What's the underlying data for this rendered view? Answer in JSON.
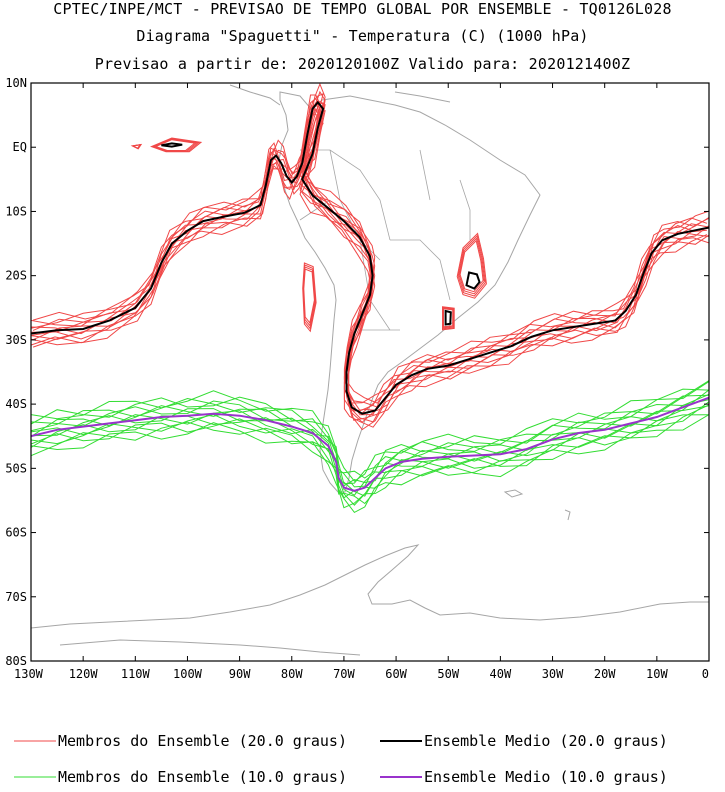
{
  "header": {
    "line1": "CPTEC/INPE/MCT - PREVISAO DE TEMPO GLOBAL POR ENSEMBLE - TQ0126L028",
    "line2": "Diagrama \"Spaguetti\" - Temperatura (C) (1000 hPa)",
    "line3": "Previsao a partir de: 2020120100Z  Valido para: 2020121400Z"
  },
  "axes": {
    "lat_labels": [
      "10N",
      "EQ",
      "10S",
      "20S",
      "30S",
      "40S",
      "50S",
      "60S",
      "70S",
      "80S"
    ],
    "lon_labels": [
      "130W",
      "120W",
      "110W",
      "100W",
      "90W",
      "80W",
      "70W",
      "60W",
      "50W",
      "40W",
      "30W",
      "20W",
      "10W",
      "0"
    ]
  },
  "map": {
    "lon_range": [
      -130,
      0
    ],
    "lat_range": [
      -80,
      10
    ],
    "land_color": "#a6a6a6",
    "member_20_color": "#f04848",
    "mean_20_color": "#000000",
    "member_10_color": "#33dd33",
    "mean_10_color": "#9933cc",
    "contour_20_mean": [
      [
        -130,
        -29
      ],
      [
        -125,
        -28.5
      ],
      [
        -120,
        -28.3
      ],
      [
        -115,
        -27
      ],
      [
        -110,
        -25
      ],
      [
        -107,
        -22
      ],
      [
        -105,
        -18
      ],
      [
        -103,
        -15
      ],
      [
        -100,
        -13
      ],
      [
        -97,
        -11.5
      ],
      [
        -93,
        -10.8
      ],
      [
        -89,
        -10.2
      ],
      [
        -86,
        -9
      ],
      [
        -85,
        -6
      ],
      [
        -84,
        -2
      ],
      [
        -83,
        -1.3
      ],
      [
        -82,
        -2.5
      ],
      [
        -81,
        -4.5
      ],
      [
        -80,
        -5.5
      ],
      [
        -79,
        -4.5
      ],
      [
        -78,
        -2.5
      ],
      [
        -77,
        2
      ],
      [
        -76,
        6
      ],
      [
        -75,
        7
      ],
      [
        -74,
        6
      ],
      [
        -75,
        3
      ],
      [
        -76,
        -1
      ],
      [
        -77,
        -3
      ],
      [
        -78,
        -5
      ],
      [
        -76,
        -7.5
      ],
      [
        -73,
        -9.5
      ],
      [
        -70,
        -11.5
      ],
      [
        -67,
        -14
      ],
      [
        -65,
        -17
      ],
      [
        -64.5,
        -20
      ],
      [
        -65,
        -23
      ],
      [
        -66.5,
        -26
      ],
      [
        -68,
        -29
      ],
      [
        -69,
        -32
      ],
      [
        -69.5,
        -35
      ],
      [
        -69.5,
        -38
      ],
      [
        -68.5,
        -40.5
      ],
      [
        -66.5,
        -41.5
      ],
      [
        -64,
        -41
      ],
      [
        -62,
        -39
      ],
      [
        -60,
        -37
      ],
      [
        -57,
        -35.5
      ],
      [
        -54,
        -34.5
      ],
      [
        -50,
        -34
      ],
      [
        -46,
        -33
      ],
      [
        -42,
        -32
      ],
      [
        -38,
        -31
      ],
      [
        -34,
        -29.5
      ],
      [
        -30,
        -28.5
      ],
      [
        -26,
        -28
      ],
      [
        -22,
        -27.5
      ],
      [
        -18,
        -27
      ],
      [
        -16,
        -25.5
      ],
      [
        -14,
        -23
      ],
      [
        -12.5,
        -19.5
      ],
      [
        -11,
        -16.5
      ],
      [
        -9,
        -14.5
      ],
      [
        -6,
        -13.5
      ],
      [
        -3,
        -13
      ],
      [
        0,
        -12.5
      ]
    ],
    "contour_10_mean": [
      [
        -130,
        -45
      ],
      [
        -125,
        -44
      ],
      [
        -120,
        -43.5
      ],
      [
        -115,
        -43
      ],
      [
        -110,
        -42.5
      ],
      [
        -105,
        -42
      ],
      [
        -100,
        -41.8
      ],
      [
        -95,
        -41.5
      ],
      [
        -90,
        -41.8
      ],
      [
        -85,
        -42.5
      ],
      [
        -80,
        -43.5
      ],
      [
        -76,
        -44.5
      ],
      [
        -73,
        -46.5
      ],
      [
        -71.5,
        -49
      ],
      [
        -71,
        -51.5
      ],
      [
        -70,
        -53
      ],
      [
        -68,
        -53.5
      ],
      [
        -66,
        -53
      ],
      [
        -64,
        -51.5
      ],
      [
        -62,
        -50
      ],
      [
        -59,
        -49
      ],
      [
        -55,
        -48.5
      ],
      [
        -50,
        -48.2
      ],
      [
        -45,
        -48
      ],
      [
        -40,
        -47.8
      ],
      [
        -35,
        -47
      ],
      [
        -30,
        -45.5
      ],
      [
        -25,
        -44.5
      ],
      [
        -20,
        -44
      ],
      [
        -15,
        -43
      ],
      [
        -10,
        -42
      ],
      [
        -5,
        -40.5
      ],
      [
        0,
        -39
      ]
    ],
    "closed_contours_mean": [
      [
        [
          -105,
          0.3
        ],
        [
          -103,
          0.6
        ],
        [
          -101,
          0.4
        ],
        [
          -103,
          0.1
        ],
        [
          -105,
          0.3
        ]
      ],
      [
        [
          -46,
          -19.5
        ],
        [
          -44.5,
          -19.8
        ],
        [
          -44,
          -21
        ],
        [
          -45,
          -22
        ],
        [
          -46.5,
          -21.5
        ],
        [
          -46,
          -19.5
        ]
      ],
      [
        [
          -50.5,
          -25.5
        ],
        [
          -49.5,
          -25.7
        ],
        [
          -49.6,
          -27.5
        ],
        [
          -50.5,
          -27.6
        ],
        [
          -50.5,
          -25.5
        ]
      ]
    ],
    "closed_contours_members": [
      [
        [
          -110.5,
          0.2
        ],
        [
          -109,
          0.4
        ],
        [
          -109.5,
          -0.2
        ],
        [
          -110.5,
          0.2
        ]
      ],
      [
        [
          -106.5,
          0.1
        ],
        [
          -103,
          1.3
        ],
        [
          -98,
          0.7
        ],
        [
          -100,
          -0.6
        ],
        [
          -104,
          -0.6
        ],
        [
          -106.5,
          0.1
        ]
      ],
      [
        [
          -77.5,
          -18.5
        ],
        [
          -76,
          -19
        ],
        [
          -75.5,
          -24
        ],
        [
          -76.5,
          -28
        ],
        [
          -77.5,
          -27
        ],
        [
          -77.8,
          -22
        ],
        [
          -77.5,
          -18.5
        ]
      ],
      [
        [
          -47,
          -16
        ],
        [
          -44.5,
          -14
        ],
        [
          -43.5,
          -17.5
        ],
        [
          -43,
          -21
        ],
        [
          -45,
          -23
        ],
        [
          -47,
          -22.5
        ],
        [
          -48,
          -20
        ],
        [
          -47,
          -16
        ]
      ],
      [
        [
          -51,
          -25
        ],
        [
          -49,
          -25.2
        ],
        [
          -49,
          -28
        ],
        [
          -51,
          -28.2
        ],
        [
          -51,
          -25
        ]
      ]
    ]
  },
  "legend": {
    "items": [
      {
        "label": "Membros do Ensemble (20.0 graus)",
        "color": "#f04848",
        "width": 1
      },
      {
        "label": "Ensemble Medio (20.0 graus)",
        "color": "#000000",
        "width": 2
      },
      {
        "label": "Membros do Ensemble (10.0 graus)",
        "color": "#33dd33",
        "width": 1
      },
      {
        "label": "Ensemble Medio (10.0 graus)",
        "color": "#9933cc",
        "width": 2
      }
    ]
  }
}
